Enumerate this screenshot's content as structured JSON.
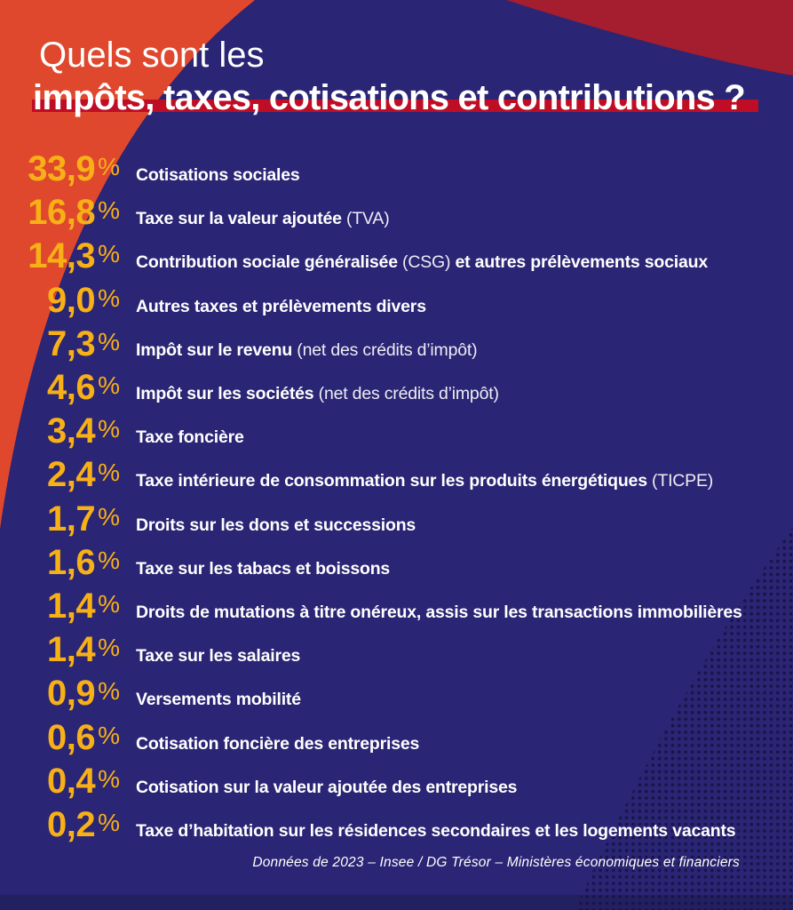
{
  "title": {
    "light": "Quels sont les",
    "bold": "impôts, taxes, cotisations et contributions ?"
  },
  "items": [
    {
      "value": "33,9",
      "unit": "%",
      "bold": "Cotisations sociales",
      "light": "",
      "bold2": ""
    },
    {
      "value": "16,8",
      "unit": "%",
      "bold": "Taxe sur la valeur ajoutée",
      "light": " (TVA)",
      "bold2": ""
    },
    {
      "value": "14,3",
      "unit": "%",
      "bold": "Contribution sociale généralisée",
      "light": " (CSG)",
      "bold2": " et autres prélèvements sociaux"
    },
    {
      "value": "9,0",
      "unit": "%",
      "bold": "Autres taxes et prélèvements divers",
      "light": "",
      "bold2": ""
    },
    {
      "value": "7,3",
      "unit": "%",
      "bold": "Impôt sur le revenu",
      "light": " (net des crédits d’impôt)",
      "bold2": ""
    },
    {
      "value": "4,6",
      "unit": "%",
      "bold": "Impôt sur les sociétés",
      "light": " (net des crédits d’impôt)",
      "bold2": ""
    },
    {
      "value": "3,4",
      "unit": "%",
      "bold": "Taxe foncière",
      "light": "",
      "bold2": ""
    },
    {
      "value": "2,4",
      "unit": "%",
      "bold": "Taxe intérieure de consommation sur les produits énergétiques",
      "light": " (TICPE)",
      "bold2": ""
    },
    {
      "value": "1,7",
      "unit": "%",
      "bold": "Droits sur les dons et successions",
      "light": "",
      "bold2": ""
    },
    {
      "value": "1,6",
      "unit": "%",
      "bold": "Taxe sur les tabacs et boissons",
      "light": "",
      "bold2": ""
    },
    {
      "value": "1,4",
      "unit": "%",
      "bold": "Droits de mutations à titre onéreux, assis sur les transactions immobilières",
      "light": "",
      "bold2": ""
    },
    {
      "value": "1,4",
      "unit": "%",
      "bold": "Taxe sur les salaires",
      "light": "",
      "bold2": ""
    },
    {
      "value": "0,9",
      "unit": "%",
      "bold": "Versements mobilité",
      "light": "",
      "bold2": ""
    },
    {
      "value": "0,6",
      "unit": "%",
      "bold": "Cotisation foncière des entreprises",
      "light": "",
      "bold2": ""
    },
    {
      "value": "0,4",
      "unit": "%",
      "bold": "Cotisation sur la valeur ajoutée des entreprises",
      "light": "",
      "bold2": ""
    },
    {
      "value": "0,2",
      "unit": "%",
      "bold": "Taxe d’habitation sur les résidences secondaires et les logements vacants",
      "light": "",
      "bold2": ""
    }
  ],
  "footer": "Données de 2023 – Insee / DG Trésor – Ministères économiques et financiers",
  "colors": {
    "background_navy": "#2A2574",
    "bottom_strip_navy": "#232061",
    "orange_shape": "#E0482E",
    "dark_red_shape": "#A41E2F",
    "title_bar_red": "#C00D26",
    "value_yellow": "#F8B017",
    "text_white": "#FFFFFF",
    "dot_pattern": "#1A1449"
  },
  "chart_data": {
    "type": "table",
    "title": "Quels sont les impôts, taxes, cotisations et contributions ?",
    "unit": "%",
    "categories": [
      "Cotisations sociales",
      "Taxe sur la valeur ajoutée (TVA)",
      "Contribution sociale généralisée (CSG) et autres prélèvements sociaux",
      "Autres taxes et prélèvements divers",
      "Impôt sur le revenu (net des crédits d’impôt)",
      "Impôt sur les sociétés (net des crédits d’impôt)",
      "Taxe foncière",
      "Taxe intérieure de consommation sur les produits énergétiques (TICPE)",
      "Droits sur les dons et successions",
      "Taxe sur les tabacs et boissons",
      "Droits de mutations à titre onéreux, assis sur les transactions immobilières",
      "Taxe sur les salaires",
      "Versements mobilité",
      "Cotisation foncière des entreprises",
      "Cotisation sur la valeur ajoutée des entreprises",
      "Taxe d’habitation sur les résidences secondaires et les logements vacants"
    ],
    "values": [
      33.9,
      16.8,
      14.3,
      9.0,
      7.3,
      4.6,
      3.4,
      2.4,
      1.7,
      1.6,
      1.4,
      1.4,
      0.9,
      0.6,
      0.4,
      0.2
    ],
    "source": "Données de 2023 – Insee / DG Trésor – Ministères économiques et financiers"
  }
}
